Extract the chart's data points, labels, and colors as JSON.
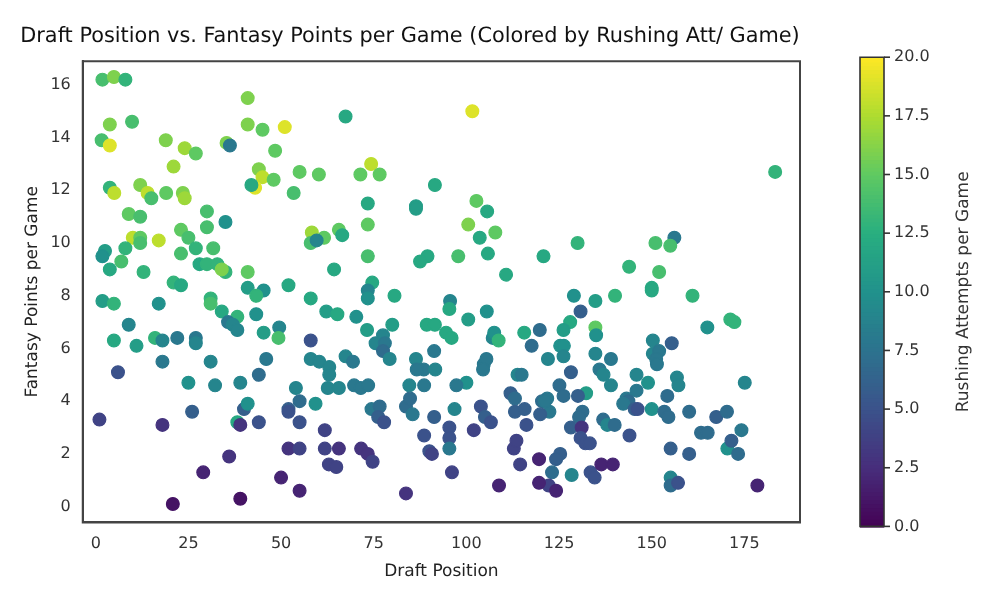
{
  "chart_data": {
    "type": "scatter",
    "title": "Draft Position vs. Fantasy Points per Game (Colored by Rushing Att/ Game)",
    "xlabel": "Draft Position",
    "ylabel": "Fantasy Points per Game",
    "clabel": "Rushing Attempts per Game",
    "marker": "circle",
    "xlim": [
      -3.5,
      190
    ],
    "xticks": [
      0,
      25,
      50,
      75,
      100,
      125,
      150,
      175
    ],
    "ylim": [
      -0.6,
      16.9
    ],
    "yticks": [
      0,
      2,
      4,
      6,
      8,
      10,
      12,
      14,
      16
    ],
    "clim": [
      0,
      20
    ],
    "cticks": [
      {
        "value": 0,
        "label": "0.0"
      },
      {
        "value": 2.5,
        "label": "2.5"
      },
      {
        "value": 5,
        "label": "5.0"
      },
      {
        "value": 7.5,
        "label": "7.5"
      },
      {
        "value": 10,
        "label": "10.0"
      },
      {
        "value": 12.5,
        "label": "12.5"
      },
      {
        "value": 15,
        "label": "15.0"
      },
      {
        "value": 17.5,
        "label": "17.5"
      },
      {
        "value": 20,
        "label": "20.0"
      }
    ],
    "series": [
      {
        "x": [
          1.8,
          4.9,
          8,
          41,
          3.8,
          9.8,
          1.6,
          3.8,
          18.9,
          24,
          27,
          21,
          35.3,
          36.2,
          41,
          45,
          51,
          48.4,
          44,
          45,
          43,
          48,
          42,
          55,
          53.4,
          3.8,
          5,
          12,
          14,
          15,
          19,
          23.5,
          24,
          8.9,
          12,
          30,
          35,
          23,
          10,
          12,
          12,
          17,
          25,
          30,
          2.5,
          1.8,
          8,
          23,
          27,
          31.7,
          6.9,
          3.8,
          12.9,
          28,
          30,
          32.8,
          35,
          34,
          21,
          23,
          41,
          41,
          45.3,
          43.3,
          52,
          1.8,
          4.9,
          17,
          31,
          31,
          34,
          38.2,
          35.7,
          37,
          38.2,
          43.3,
          45.3,
          49.5,
          49.3,
          8.9,
          4.9,
          11,
          16,
          18,
          22,
          27,
          27,
          18,
          31,
          6,
          46,
          44,
          58,
          25,
          32.2,
          39,
          54,
          26,
          40,
          41,
          52,
          52,
          55,
          1,
          18,
          38.2,
          39,
          44,
          55,
          52,
          55,
          36,
          29,
          50,
          55,
          20.8,
          39
        ],
        "values": [
          16.2,
          16.3,
          16.2,
          15.5,
          14.5,
          14.6,
          13.9,
          13.7,
          13.9,
          13.6,
          13.4,
          12.9,
          13.8,
          13.7,
          14.5,
          14.3,
          14.4,
          13.5,
          12.8,
          12.5,
          12.1,
          12.4,
          12.2,
          12.7,
          11.9,
          12.1,
          11.9,
          12.2,
          11.9,
          11.7,
          11.9,
          11.9,
          11.7,
          11.1,
          11,
          11.2,
          10.8,
          10.5,
          10.2,
          10.2,
          10,
          10.1,
          10.2,
          10.6,
          9.7,
          9.5,
          9.8,
          9.6,
          9.8,
          9.8,
          9.3,
          9,
          8.9,
          9.2,
          9.2,
          9.2,
          8.9,
          9,
          8.5,
          8.4,
          8.9,
          8.3,
          8.2,
          8,
          8.4,
          7.8,
          7.7,
          7.7,
          7.9,
          7.7,
          7.4,
          7.2,
          7,
          6.9,
          6.7,
          7.3,
          6.6,
          6.8,
          6.4,
          6.9,
          6.3,
          6.1,
          6.4,
          6.3,
          6.4,
          6.4,
          6.2,
          5.5,
          5.5,
          5.1,
          5.6,
          5,
          6.3,
          4.7,
          4.6,
          4.7,
          4.5,
          3.6,
          3.7,
          3.9,
          3.7,
          3.6,
          4,
          3.3,
          3.1,
          3.2,
          3.1,
          3.2,
          3.2,
          2.2,
          2.2,
          1.9,
          1.3,
          1.1,
          0.6,
          0.1,
          0.3
        ],
        "colors": [
          "#48be6e",
          "#7ed14e",
          "#33b37a",
          "#7ed14e",
          "#7ed14e",
          "#48be6e",
          "#48be6e",
          "#dde32a",
          "#7ed14e",
          "#9dd83a",
          "#5ec962",
          "#9dd83a",
          "#7ed14e",
          "#2a788e",
          "#7ed14e",
          "#5ec962",
          "#dde32a",
          "#5ec962",
          "#7ed14e",
          "#bdde2e",
          "#dde32a",
          "#5ec962",
          "#27a882",
          "#5ec962",
          "#48be6e",
          "#33b37a",
          "#bdde2e",
          "#7ed14e",
          "#bdde2e",
          "#48be6e",
          "#5ec962",
          "#7ed14e",
          "#9dd83a",
          "#5ec962",
          "#48be6e",
          "#48be6e",
          "#21918c",
          "#5ec962",
          "#bdde2e",
          "#5ec962",
          "#48be6e",
          "#bdde2e",
          "#48be6e",
          "#48be6e",
          "#249d87",
          "#21918c",
          "#33b37a",
          "#48be6e",
          "#33b37a",
          "#48be6e",
          "#48be6e",
          "#27a882",
          "#33b37a",
          "#27a882",
          "#33b37a",
          "#33b37a",
          "#33b37a",
          "#7ed14e",
          "#33b37a",
          "#27a882",
          "#5ec962",
          "#249d87",
          "#21918c",
          "#33b37a",
          "#27a882",
          "#249d87",
          "#33b37a",
          "#21918c",
          "#33b37a",
          "#48be6e",
          "#27a882",
          "#33b37a",
          "#2a788e",
          "#25858d",
          "#25858d",
          "#21918c",
          "#249d87",
          "#25858d",
          "#48be6e",
          "#25858d",
          "#27a882",
          "#249d87",
          "#33b37a",
          "#25858d",
          "#2a788e",
          "#2a788e",
          "#25858d",
          "#2a788e",
          "#25858d",
          "#3b528b",
          "#2a788e",
          "#2f6c8d",
          "#3b528b",
          "#21918c",
          "#25858d",
          "#25858d",
          "#25858d",
          "#355f8c",
          "#355f8c",
          "#21918c",
          "#355f8c",
          "#3b528b",
          "#2f6c8d",
          "#404385",
          "#45347e",
          "#27a882",
          "#45347e",
          "#3b528b",
          "#3b528b",
          "#45347e",
          "#404385",
          "#45347e",
          "#462473",
          "#462473",
          "#462473",
          "#451364",
          "#451364"
        ],
        "cvalues": [
          14,
          16,
          13,
          16,
          16,
          14,
          14,
          19,
          16,
          17,
          15,
          17,
          16,
          8,
          16,
          15,
          19,
          15,
          16,
          18,
          19,
          15,
          12,
          15,
          14,
          13,
          18,
          16,
          18,
          14,
          15,
          16,
          17,
          15,
          14,
          14,
          10,
          15,
          18,
          15,
          14,
          18,
          14,
          14,
          11,
          10,
          13,
          14,
          13,
          14,
          14,
          12,
          13,
          12,
          13,
          13,
          13,
          16,
          13,
          12,
          15,
          11,
          10,
          13,
          12,
          11,
          13,
          10,
          13,
          14,
          12,
          13,
          8,
          9,
          9,
          10,
          11,
          9,
          14,
          9,
          12,
          11,
          13,
          9,
          8,
          8,
          9,
          8,
          9,
          5,
          8,
          7,
          5,
          10,
          9,
          9,
          9,
          6,
          6,
          10,
          6,
          5,
          7,
          4,
          3,
          12,
          3,
          5,
          5,
          3,
          4,
          3,
          2,
          2,
          2,
          1,
          1
        ]
      },
      {
        "x": [
          67.4,
          101.6,
          74.3,
          60.2,
          71.4,
          76.6,
          91.5,
          73.4,
          86.4,
          86.4,
          102.7,
          105.6,
          100.5,
          107.8,
          103.6,
          58.3,
          61.6,
          65.6,
          66.5,
          73.4,
          58,
          59.6,
          73.4,
          89.5,
          87.5,
          97.8,
          105.8,
          120.8,
          64.3,
          74.6,
          73.4,
          73.4,
          80.6,
          110.7,
          58,
          62.2,
          65.2,
          70.3,
          73.2,
          77.5,
          75.5,
          78,
          80,
          89.3,
          91.5,
          95.6,
          95.4,
          94.5,
          96,
          100.5,
          105.5,
          107.1,
          107.5,
          108.7,
          115.6,
          119.8,
          117.6,
          58,
          60.3,
          63,
          63,
          67.4,
          69.4,
          77.5,
          79.3,
          86.4,
          88.5,
          86.6,
          91.6,
          91.3,
          104.7,
          105.4,
          104.5,
          113.8,
          114.9,
          100,
          97.3,
          62.6,
          65.6,
          69.7,
          71.5,
          73.5,
          84.6,
          88.6,
          59.3,
          74.4,
          76.6,
          76.2,
          77.8,
          83.7,
          85.5,
          84.8,
          96.8,
          103.9,
          111.9,
          113.1,
          113.1,
          115.7,
          116.2,
          120.4,
          121.2,
          119.9,
          105,
          106.6,
          102,
          95.4,
          95.4,
          95.4,
          91.3,
          88.6,
          90,
          90.7,
          61.8,
          61.8,
          65.6,
          62.9,
          64.9,
          71.6,
          73.4,
          74.7,
          96.1,
          83.7,
          108.8,
          112.8,
          113.5,
          114.5,
          119.6,
          119.6
        ],
        "values": [
          14.8,
          15,
          13,
          12.6,
          12.6,
          12.6,
          12.2,
          11.5,
          11.4,
          11.3,
          11.6,
          11.2,
          10.7,
          10.4,
          10.2,
          10.4,
          10.2,
          10.5,
          10.3,
          10.7,
          10,
          10.1,
          9.5,
          9.5,
          9.3,
          9.5,
          9.6,
          9.5,
          9,
          8.5,
          8.2,
          7.9,
          8,
          8.8,
          7.9,
          7.4,
          7.3,
          7.2,
          6.7,
          6.5,
          6.2,
          6.2,
          6.9,
          6.9,
          6.9,
          7.8,
          7.5,
          6.6,
          6.4,
          7.1,
          7.4,
          6.4,
          6.6,
          6.3,
          6.6,
          6.7,
          6.1,
          5.6,
          5.5,
          5.3,
          5,
          5.7,
          5.5,
          5.9,
          5.6,
          5.6,
          5.2,
          5.2,
          5.2,
          5.9,
          5.4,
          5.6,
          5.2,
          5,
          5,
          4.7,
          4.6,
          4.5,
          4.5,
          4.6,
          4.5,
          4.6,
          4.6,
          4.6,
          3.9,
          3.7,
          3.8,
          3.4,
          3.2,
          3.8,
          3.5,
          4.1,
          3.7,
          3.8,
          4.3,
          4.1,
          3.6,
          3.7,
          3.1,
          4,
          4,
          3.5,
          3.4,
          3.2,
          2.9,
          3,
          2.6,
          2.2,
          3.4,
          2.7,
          2.1,
          2,
          2.9,
          2.2,
          2.2,
          1.6,
          1.5,
          2.2,
          2,
          1.7,
          1.3,
          0.5,
          0.8,
          2.2,
          2.5,
          1.6,
          1.8,
          0.9
        ],
        "colors": [
          "#27a882",
          "#dde32a",
          "#bdde2e",
          "#5ec962",
          "#5ec962",
          "#5ec962",
          "#27a882",
          "#27a882",
          "#249d87",
          "#249d87",
          "#5ec962",
          "#27a882",
          "#7ed14e",
          "#5ec962",
          "#27a882",
          "#9dd83a",
          "#5ec962",
          "#5ec962",
          "#27a882",
          "#5ec962",
          "#48be6e",
          "#25858d",
          "#48be6e",
          "#27a882",
          "#27a882",
          "#48be6e",
          "#27a882",
          "#27a882",
          "#27a882",
          "#27a882",
          "#25858d",
          "#21918c",
          "#27a882",
          "#27a882",
          "#27a882",
          "#249d87",
          "#27a882",
          "#21918c",
          "#249d87",
          "#25858d",
          "#25858d",
          "#2a788e",
          "#249d87",
          "#27a882",
          "#27a882",
          "#25858d",
          "#27a882",
          "#27a882",
          "#27a882",
          "#249d87",
          "#21918c",
          "#25858d",
          "#21918c",
          "#33b37a",
          "#27a882",
          "#2f6c8d",
          "#2f6c8d",
          "#25858d",
          "#25858d",
          "#25858d",
          "#25858d",
          "#25858d",
          "#2a788e",
          "#2f6c8d",
          "#25858d",
          "#25858d",
          "#2a788e",
          "#2a788e",
          "#25858d",
          "#2a788e",
          "#2a788e",
          "#2a788e",
          "#2a788e",
          "#25858d",
          "#2a788e",
          "#21918c",
          "#2a788e",
          "#25858d",
          "#25858d",
          "#2a788e",
          "#2a788e",
          "#2a788e",
          "#25858d",
          "#2a788e",
          "#21918c",
          "#2a788e",
          "#2f6c8d",
          "#355f8c",
          "#3b528b",
          "#2f6c8d",
          "#2a788e",
          "#2f6c8d",
          "#25858d",
          "#3b528b",
          "#355f8c",
          "#2f6c8d",
          "#355f8c",
          "#355f8c",
          "#3b528b",
          "#2f6c8d",
          "#2a788e",
          "#355f8c",
          "#355f8c",
          "#3b528b",
          "#404385",
          "#3b528b",
          "#3b528b",
          "#2a788e",
          "#355f8c",
          "#3b528b",
          "#3b528b",
          "#404385",
          "#404385",
          "#404385",
          "#45347e",
          "#404385",
          "#404385",
          "#45347e",
          "#45347e",
          "#404385",
          "#404385",
          "#45347e",
          "#462473",
          "#404385",
          "#404385",
          "#404385",
          "#462473",
          "#462473"
        ],
        "cvalues": [
          12,
          19,
          18,
          15,
          15,
          15,
          12,
          12,
          11,
          11,
          15,
          12,
          16,
          15,
          12,
          17,
          15,
          15,
          12,
          15,
          14,
          9,
          14,
          12,
          12,
          14,
          12,
          12,
          12,
          12,
          9,
          10,
          12,
          12,
          12,
          11,
          12,
          10,
          11,
          9,
          9,
          8,
          11,
          12,
          12,
          9,
          12,
          12,
          12,
          11,
          10,
          9,
          10,
          13,
          12,
          7,
          7,
          9,
          9,
          9,
          9,
          9,
          8,
          7,
          9,
          9,
          8,
          8,
          9,
          8,
          8,
          8,
          8,
          9,
          8,
          10,
          8,
          9,
          9,
          8,
          8,
          8,
          9,
          8,
          10,
          8,
          7,
          6,
          5,
          7,
          8,
          7,
          9,
          5,
          6,
          7,
          6,
          6,
          5,
          7,
          8,
          6,
          6,
          5,
          4,
          5,
          5,
          8,
          6,
          5,
          5,
          4,
          4,
          4,
          3,
          4,
          4,
          3,
          3,
          4,
          4,
          3,
          2,
          4,
          4,
          4,
          2,
          2
        ]
      },
      {
        "x": [
          183.3,
          156.1,
          151,
          155,
          130,
          143.9,
          152,
          150,
          150,
          140.1,
          161,
          134.8,
          129,
          130.8,
          128,
          126.2,
          134.8,
          135,
          165,
          171.2,
          172.3,
          125.3,
          126.3,
          126.2,
          134.8,
          139,
          122,
          150.3,
          150.3,
          152,
          151.2,
          151.4,
          155.4,
          135.9,
          137,
          128.2,
          139,
          145.9,
          149,
          156.8,
          157.2,
          175.1,
          125.1,
          126.2,
          132.3,
          130.1,
          122.4,
          145.9,
          143.2,
          143.7,
          142.3,
          145.4,
          146.2,
          150,
          154.2,
          153.4,
          154.5,
          160.1,
          167.4,
          170.3,
          131.3,
          130.4,
          136.9,
          138,
          140,
          144,
          128.2,
          131.1,
          130.8,
          132.1,
          133.3,
          163.3,
          165.1,
          174.2,
          170.4,
          171.5,
          173.3,
          155.1,
          160.1,
          125.3,
          124.2,
          123.1,
          128.4,
          133.5,
          134.6,
          136.4,
          139.5,
          155.1,
          155.1,
          157.1,
          122.2,
          124.2,
          178.5,
          121.8
        ],
        "values": [
          12.7,
          10.2,
          10,
          9.9,
          10,
          9.1,
          8.9,
          8.3,
          8.2,
          8,
          8,
          7.8,
          8,
          7.4,
          7,
          6.7,
          6.8,
          6.5,
          6.8,
          7.1,
          7,
          6.1,
          6.1,
          5.7,
          5.8,
          5.6,
          5.6,
          6.3,
          5.8,
          5.9,
          5.6,
          5.4,
          6.2,
          5.2,
          5,
          5.1,
          4.6,
          5,
          4.7,
          4.9,
          4.6,
          4.7,
          4.6,
          4.2,
          4.3,
          4.2,
          3.6,
          4.4,
          4.1,
          4,
          3.9,
          3.7,
          3.7,
          3.7,
          4.2,
          3.6,
          3.4,
          3.6,
          3.4,
          3.6,
          3.6,
          3.4,
          3.3,
          3.1,
          3.1,
          2.7,
          3,
          3,
          2.6,
          2.4,
          2.4,
          2.8,
          2.8,
          2.9,
          2.2,
          2.5,
          2,
          2.2,
          2,
          2,
          1.8,
          1.3,
          1.2,
          1.3,
          1.1,
          1.6,
          1.6,
          1.1,
          0.8,
          0.9,
          0.8,
          0.6,
          0.8,
          4.1
        ],
        "colors": [
          "#33b37a",
          "#2a788e",
          "#48be6e",
          "#48be6e",
          "#33b37a",
          "#33b37a",
          "#48be6e",
          "#27a882",
          "#27a882",
          "#33b37a",
          "#33b37a",
          "#249d87",
          "#21918c",
          "#355f8c",
          "#27a882",
          "#249d87",
          "#5ec962",
          "#21918c",
          "#21918c",
          "#33b37a",
          "#33b37a",
          "#21918c",
          "#21918c",
          "#25858d",
          "#25858d",
          "#2a788e",
          "#25858d",
          "#25858d",
          "#25858d",
          "#2a788e",
          "#2a788e",
          "#2a788e",
          "#355f8c",
          "#2a788e",
          "#25858d",
          "#355f8c",
          "#25858d",
          "#25858d",
          "#21918c",
          "#25858d",
          "#25858d",
          "#25858d",
          "#2f6c8d",
          "#2f6c8d",
          "#249d87",
          "#355f8c",
          "#2a788e",
          "#2a788e",
          "#2a788e",
          "#2f6c8d",
          "#2a788e",
          "#355f8c",
          "#3b528b",
          "#21918c",
          "#2f6c8d",
          "#2f6c8d",
          "#2f6c8d",
          "#2f6c8d",
          "#355f8c",
          "#2f6c8d",
          "#2f6c8d",
          "#2f6c8d",
          "#2f6c8d",
          "#25858d",
          "#2f6c8d",
          "#3b528b",
          "#355f8c",
          "#45347e",
          "#3b528b",
          "#3b528b",
          "#3b528b",
          "#2f6c8d",
          "#2f6c8d",
          "#2a788e",
          "#21918c",
          "#355f8c",
          "#2f6c8d",
          "#355f8c",
          "#355f8c",
          "#355f8c",
          "#355f8c",
          "#2f6c8d",
          "#25858d",
          "#3b528b",
          "#3b528b",
          "#462473",
          "#462473",
          "#25858d",
          "#2f6c8d",
          "#3b528b",
          "#404385",
          "#462473",
          "#462473",
          "#2a788e"
        ],
        "cvalues": [
          13,
          8,
          14,
          14,
          13,
          13,
          14,
          12,
          12,
          13,
          13,
          11,
          10,
          6,
          12,
          11,
          15,
          10,
          10,
          13,
          13,
          10,
          10,
          9,
          9,
          8,
          9,
          9,
          9,
          8,
          8,
          8,
          6,
          8,
          9,
          6,
          9,
          9,
          10,
          9,
          9,
          9,
          7,
          7,
          11,
          6,
          8,
          8,
          8,
          7,
          8,
          6,
          5,
          10,
          7,
          7,
          7,
          7,
          6,
          7,
          7,
          7,
          7,
          9,
          7,
          5,
          6,
          3,
          5,
          5,
          5,
          7,
          7,
          8,
          10,
          6,
          7,
          6,
          6,
          6,
          6,
          7,
          9,
          5,
          5,
          2,
          2,
          9,
          7,
          5,
          4,
          2,
          2,
          8
        ]
      }
    ]
  }
}
